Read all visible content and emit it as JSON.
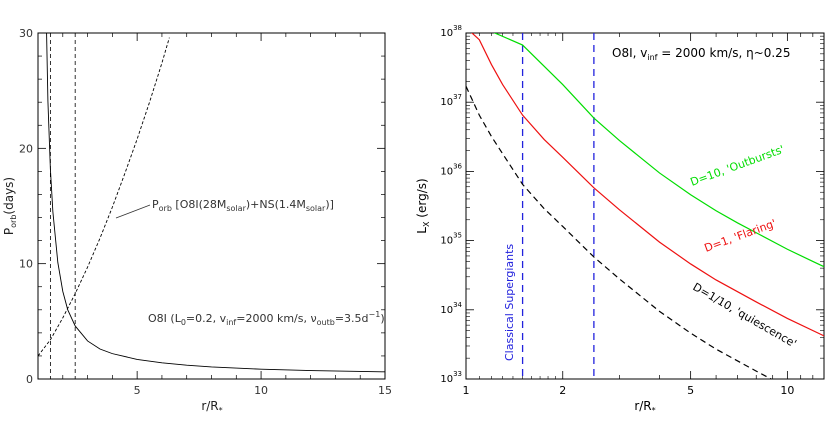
{
  "chart_data": [
    {
      "type": "line",
      "xlabel": "r/R",
      "xlabel_sub": "*",
      "ylabel": "P",
      "ylabel_sub": "orb",
      "ylabel_tail": "(days)",
      "xlim": [
        1,
        15
      ],
      "ylim": [
        0,
        30
      ],
      "x_ticks": [
        5,
        10,
        15
      ],
      "y_ticks": [
        0,
        10,
        20,
        30
      ],
      "vlines": [
        1.5,
        2.5
      ],
      "series": [
        {
          "name": "",
          "style": "solid",
          "x": [
            1.3,
            1.4,
            1.5,
            1.6,
            1.8,
            2.0,
            2.2,
            2.5,
            3.0,
            3.5,
            4.0,
            5.0,
            6.0,
            7.0,
            8.0,
            10.0,
            12.0,
            15.0
          ],
          "y": [
            35,
            24.1,
            18.2,
            14.5,
            10.1,
            7.6,
            6.0,
            4.6,
            3.3,
            2.6,
            2.2,
            1.7,
            1.4,
            1.2,
            1.05,
            0.85,
            0.73,
            0.62
          ]
        },
        {
          "name": "",
          "style": "dashed",
          "x": [
            1.0,
            1.5,
            2.0,
            2.5,
            3.0,
            3.5,
            4.0,
            4.5,
            5.0,
            5.5,
            6.0,
            6.3
          ],
          "y": [
            2.0,
            3.4,
            5.3,
            7.4,
            9.7,
            12.2,
            14.9,
            17.8,
            20.8,
            24.0,
            27.4,
            29.6
          ]
        }
      ],
      "annotation_porb": {
        "p": "P",
        "p_sub": "orb",
        "text1": " [O8I(28M",
        "sub1": "solar",
        "text2": ")+NS(1.4M",
        "sub2": "solar",
        "text3": ")]"
      },
      "annotation_params": {
        "t1": "O8I (L",
        "s1": "0",
        "t2": "=0.2, v",
        "s2": "inf",
        "t3": "=2000 km/s, ν",
        "s3": "outb",
        "t4": "=3.5d",
        "sup4": "−1",
        "t5": ")"
      }
    },
    {
      "type": "line",
      "x_scale": "log",
      "y_scale": "log",
      "xlabel": "r/R",
      "xlabel_sub": "*",
      "ylabel": "L",
      "ylabel_sub": "X",
      "ylabel_tail": " (erg/s)",
      "xlim": [
        1,
        13
      ],
      "ylim": [
        1e+33,
        1e+38
      ],
      "x_tick_labels": [
        "1",
        "2",
        "5",
        "10"
      ],
      "y_tick_labels": [
        "10",
        "10",
        "10",
        "10",
        "10",
        "10"
      ],
      "y_tick_exponents": [
        "33",
        "34",
        "35",
        "36",
        "37",
        "38"
      ],
      "vlines": [
        1.5,
        2.5
      ],
      "colors": {
        "green": "#00dd00",
        "red": "#ee1111",
        "black": "#000000",
        "blue": "#2222dd"
      },
      "title": {
        "t1": "O8I, v",
        "s1": "inf",
        "t2": " = 2000 km/s, η~0.25"
      },
      "series": [
        {
          "name": "D=10, 'Outbursts'",
          "color": "#00dd00",
          "style": "solid",
          "x": [
            1.0,
            1.2,
            1.5,
            2.0,
            2.5,
            3.0,
            4.0,
            5.0,
            6.0,
            7.0,
            8.0,
            10.0,
            12.0,
            13.0
          ],
          "y": [
            1.2e+38,
            1.05e+38,
            6.7e+37,
            1.8e+37,
            5.9e+36,
            2.8e+36,
            9.5e+35,
            4.6e+35,
            2.7e+35,
            1.8e+35,
            1.3e+35,
            7.5e+34,
            5e+34,
            4.2e+34
          ]
        },
        {
          "name": "D=1, 'Flaring'",
          "color": "#ee1111",
          "style": "solid",
          "x": [
            1.0,
            1.1,
            1.2,
            1.3,
            1.5,
            1.75,
            2.0,
            2.5,
            3.0,
            4.0,
            5.0,
            6.0,
            8.0,
            10.0,
            13.0
          ],
          "y": [
            1.2e+38,
            8e+37,
            3.5e+37,
            1.8e+37,
            6.5e+36,
            2.9e+36,
            1.6e+36,
            5.8e+35,
            2.8e+35,
            9.5e+34,
            4.6e+34,
            2.7e+34,
            1.3e+34,
            7.5e+33,
            4.2e+33
          ]
        },
        {
          "name": "D=1/10, 'quiescence'",
          "color": "#000000",
          "style": "dashed",
          "x": [
            1.0,
            1.1,
            1.2,
            1.3,
            1.5,
            1.75,
            2.0,
            2.5,
            3.0,
            4.0,
            5.0,
            6.0,
            8.0,
            10.0
          ],
          "y": [
            1.7e+37,
            6.5e+36,
            3.2e+36,
            1.8e+36,
            6.5e+35,
            2.9e+35,
            1.6e+35,
            5.8e+34,
            2.8e+34,
            9.5e+33,
            4.6e+33,
            2.7e+33,
            1.3e+33,
            7.5e+32
          ]
        }
      ],
      "vertical_label": "Classical Supergiants"
    }
  ]
}
